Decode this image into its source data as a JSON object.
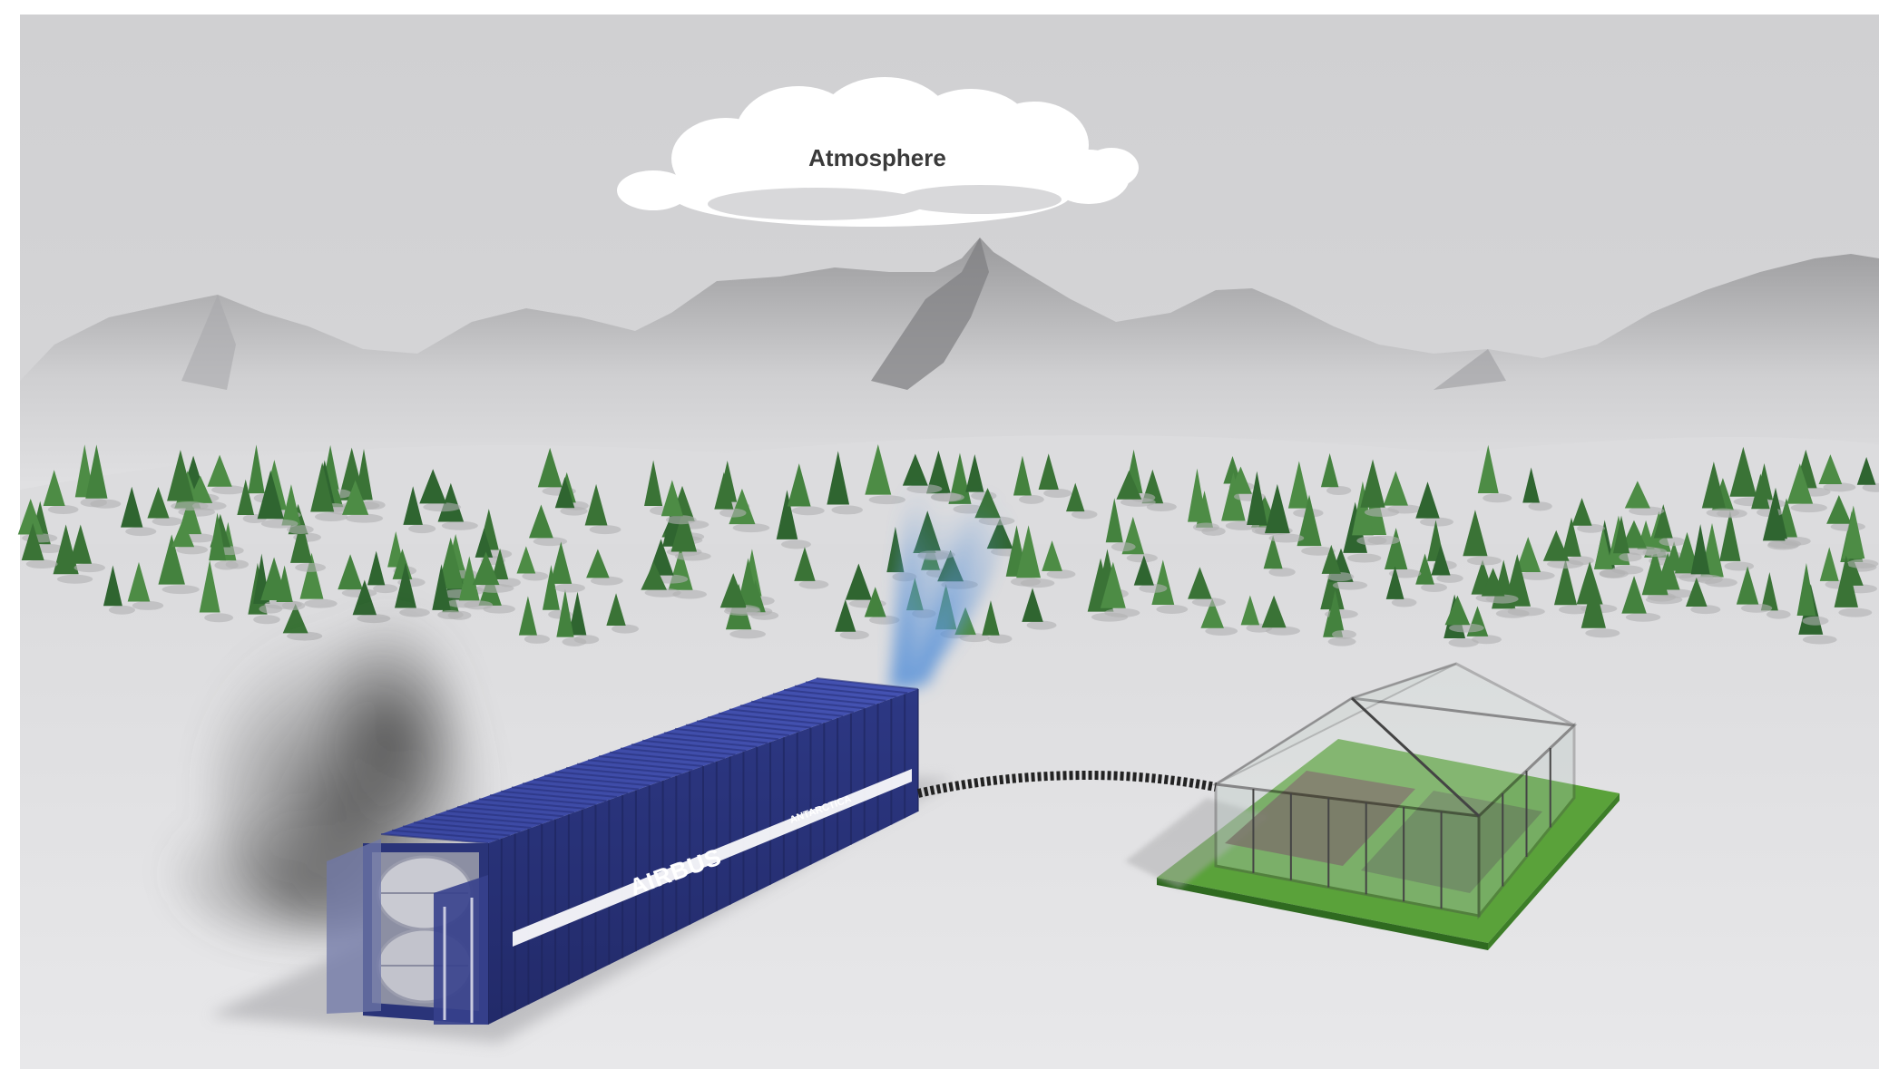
{
  "scene": {
    "cloud_label": "Atmosphere",
    "container_brand": "AIRBUS",
    "container_subbrand": "ANTARCTICA",
    "colors": {
      "sky": "#d2d2d4",
      "ground": "#e4e4e6",
      "container": "#2f3a86",
      "container_dark": "#232b66",
      "trees": "#3e7a3a",
      "grass": "#5aa23a",
      "vapor": "#5b93d8",
      "smoke": "#4e4e4e"
    },
    "icons": {
      "cloud": "cloud-icon",
      "mountains": "mountain-range-icon",
      "trees": "tree-icon",
      "container": "shipping-container-icon",
      "greenhouse": "greenhouse-icon",
      "pipe": "pipe-icon"
    }
  }
}
